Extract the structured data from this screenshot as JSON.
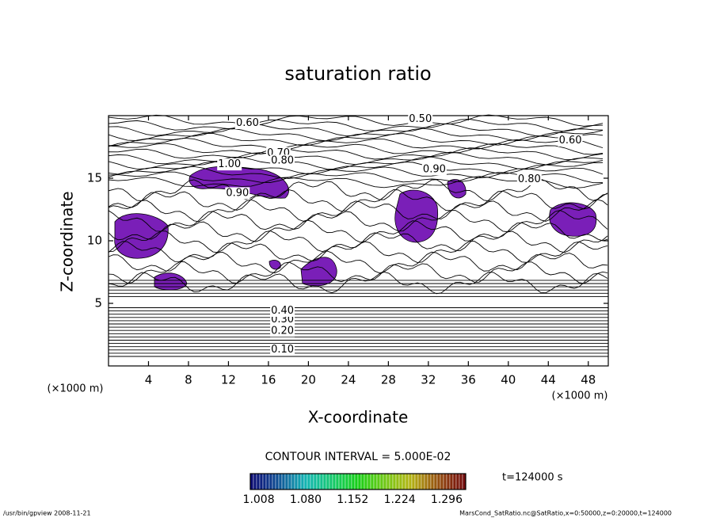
{
  "chart_data": {
    "type": "contour",
    "title": "saturation ratio",
    "xlabel": "X-coordinate",
    "ylabel": "Z-coordinate",
    "x_unit_label": "(×1000 m)",
    "y_unit_label": "(×1000 m)",
    "xlim": [
      0,
      50
    ],
    "xticks": [
      4,
      8,
      12,
      16,
      20,
      24,
      28,
      32,
      36,
      40,
      44,
      48
    ],
    "ylim": [
      0,
      20
    ],
    "yticks": [
      5,
      10,
      15
    ],
    "contour_labels": [
      {
        "label": "0.10",
        "x": 17.4,
        "z": 1.3
      },
      {
        "label": "0.20",
        "x": 17.4,
        "z": 2.8
      },
      {
        "label": "0.30",
        "x": 17.4,
        "z": 3.7
      },
      {
        "label": "0.40",
        "x": 17.4,
        "z": 4.4
      },
      {
        "label": "0.60",
        "x": 13.9,
        "z": 19.4
      },
      {
        "label": "0.50",
        "x": 31.2,
        "z": 19.7
      },
      {
        "label": "0.70",
        "x": 17.0,
        "z": 17.0
      },
      {
        "label": "0.80",
        "x": 17.4,
        "z": 16.4
      },
      {
        "label": "1.00",
        "x": 12.1,
        "z": 16.1
      },
      {
        "label": "0.90",
        "x": 32.6,
        "z": 15.7
      },
      {
        "label": "0.80",
        "x": 42.1,
        "z": 14.9
      },
      {
        "label": "0.60",
        "x": 46.2,
        "z": 18.0
      },
      {
        "label": "0.90",
        "x": 12.9,
        "z": 13.8
      }
    ],
    "contour_interval_label": "CONTOUR INTERVAL = 5.000E-02",
    "colorbar_lim": [
      1.0,
      1.33
    ],
    "colorbar_ticks": [
      {
        "value": 1.008,
        "label": "1.008"
      },
      {
        "value": 1.08,
        "label": "1.080"
      },
      {
        "value": 1.152,
        "label": "1.152"
      },
      {
        "value": 1.224,
        "label": "1.224"
      },
      {
        "value": 1.296,
        "label": "1.296"
      }
    ],
    "time_label": "t=124000 s",
    "footer_left": "/usr/bin/gpview  2008-11-21",
    "footer_right": "MarsCond_SatRatio.nc@SatRatio,x=0:50000,z=0:20000,t=124000"
  }
}
